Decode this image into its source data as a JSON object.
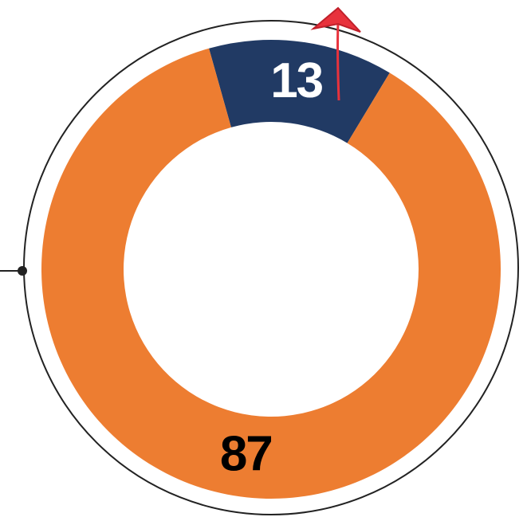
{
  "chart_data": {
    "type": "pie",
    "values": [
      13,
      87
    ],
    "colors": [
      "#213a64",
      "#ed7d31"
    ],
    "label_colors": [
      "#ffffff",
      "#000000"
    ]
  }
}
